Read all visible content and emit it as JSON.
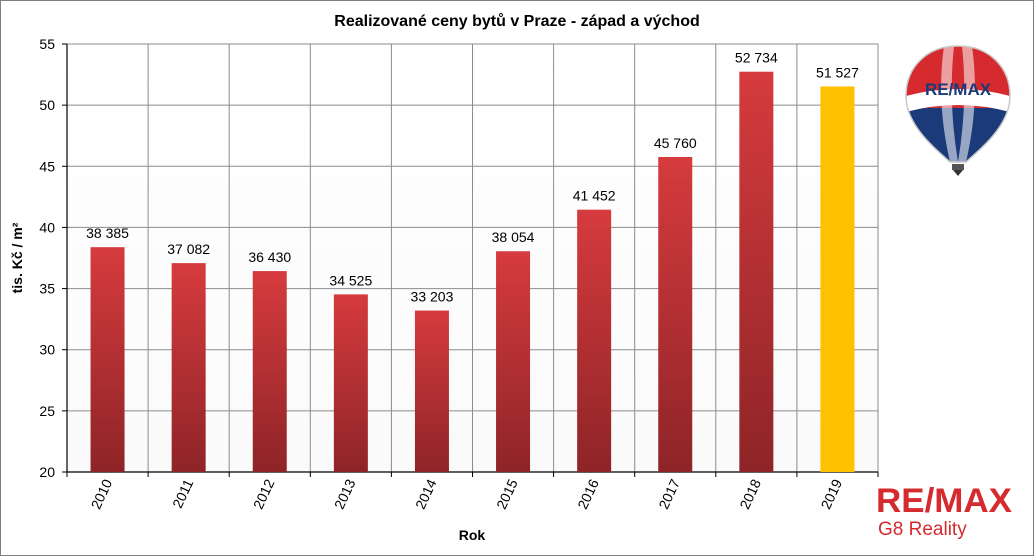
{
  "chart_data": {
    "type": "bar",
    "title": "Realizované ceny bytů v Praze - západ a východ",
    "xlabel": "Rok",
    "ylabel": "tis. Kč / m²",
    "ylim": [
      20,
      55
    ],
    "yticks": [
      "20",
      "25",
      "30",
      "35",
      "40",
      "45",
      "50",
      "55"
    ],
    "grid": true,
    "categories": [
      "2010",
      "2011",
      "2012",
      "2013",
      "2014",
      "2015",
      "2016",
      "2017",
      "2018",
      "2019"
    ],
    "values": [
      38.385,
      37.082,
      36.43,
      34.525,
      33.203,
      38.054,
      41.452,
      45.76,
      52.734,
      51.527
    ],
    "value_labels": [
      "38 385",
      "37 082",
      "36 430",
      "34 525",
      "33 203",
      "38 054",
      "41 452",
      "45 760",
      "52 734",
      "51 527"
    ],
    "bar_colors": [
      "#c9363a",
      "#c9363a",
      "#c9363a",
      "#c9363a",
      "#c9363a",
      "#c9363a",
      "#c9363a",
      "#c9363a",
      "#c9363a",
      "#ffc000"
    ],
    "colors": {
      "bar_top": "#d93c3f",
      "bar_bottom": "#8e2427",
      "highlight": "#ffc000",
      "grid": "#7f7f7f"
    }
  },
  "branding": {
    "balloon_logo_text": "RE/MAX",
    "wordmark": "RE/MAX",
    "subtitle": "G8 Reality",
    "colors": {
      "red": "#d52b2f",
      "blue": "#1a3a7a",
      "white": "#ffffff"
    }
  }
}
